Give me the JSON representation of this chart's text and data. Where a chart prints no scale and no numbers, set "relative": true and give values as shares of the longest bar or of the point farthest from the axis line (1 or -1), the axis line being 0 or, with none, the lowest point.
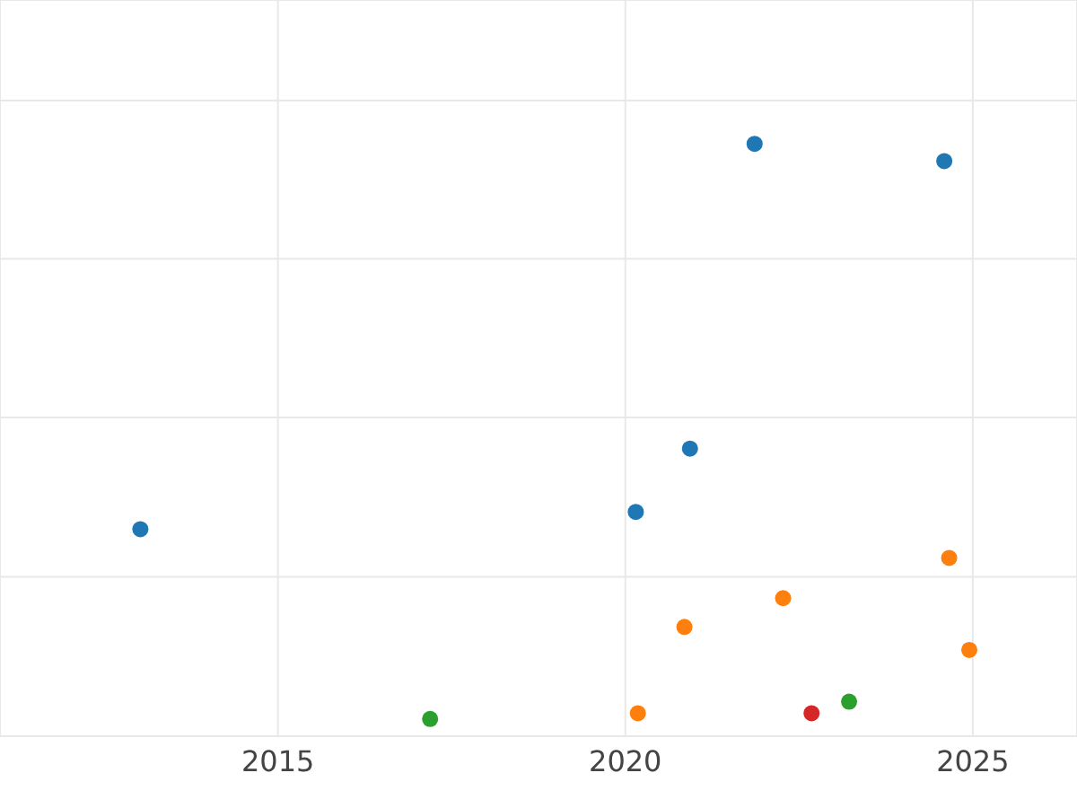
{
  "chart_data": {
    "type": "scatter",
    "relative": true,
    "xlim": [
      2011,
      2026.5
    ],
    "xticks": [
      2015,
      2020,
      2025
    ],
    "grid": true,
    "marker": "circle",
    "tick_labels": "x",
    "series": [
      {
        "color": "#1f77b4",
        "x": [
          2013.02,
          2020.15,
          2020.93,
          2021.86,
          2024.59
        ],
        "values": [
          0.33,
          0.36,
          0.47,
          1,
          0.97
        ]
      },
      {
        "color": "#ff7f0e",
        "x": [
          2020.18,
          2020.85,
          2022.27,
          2024.66,
          2024.95
        ],
        "values": [
          0.01,
          0.16,
          0.21,
          0.28,
          0.12
        ]
      },
      {
        "color": "#2ca02c",
        "x": [
          2017.19,
          2023.22
        ],
        "values": [
          0,
          0.03
        ]
      },
      {
        "color": "#d62728",
        "x": [
          2022.68
        ],
        "values": [
          0.01
        ]
      }
    ]
  }
}
